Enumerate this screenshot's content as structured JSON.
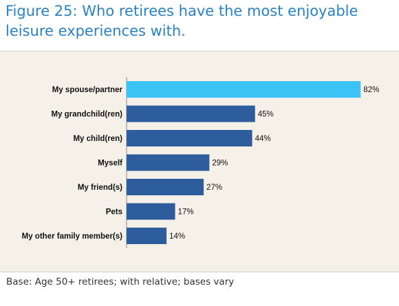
{
  "title": "Figure 25: Who retirees have the most enjoyable leisure experiences with.",
  "footnote": "Base: Age 50+ retirees; with relative; bases vary",
  "colors": {
    "highlight_bar": "#3bc3f5",
    "bar": "#2e5d9e",
    "panel_background": "#f6f1e8",
    "title": "#2a82c4"
  },
  "chart_data": {
    "type": "bar",
    "orientation": "horizontal",
    "categories": [
      "My spouse/partner",
      "My grandchild(ren)",
      "My child(ren)",
      "Myself",
      "My friend(s)",
      "Pets",
      "My other family member(s)"
    ],
    "values": [
      82,
      45,
      44,
      29,
      27,
      17,
      14
    ],
    "value_labels": [
      "82%",
      "45%",
      "44%",
      "29%",
      "27%",
      "17%",
      "14%"
    ],
    "highlighted_category": "My spouse/partner",
    "xlim": [
      0,
      100
    ],
    "unit": "%",
    "grid": false,
    "legend": "none"
  }
}
